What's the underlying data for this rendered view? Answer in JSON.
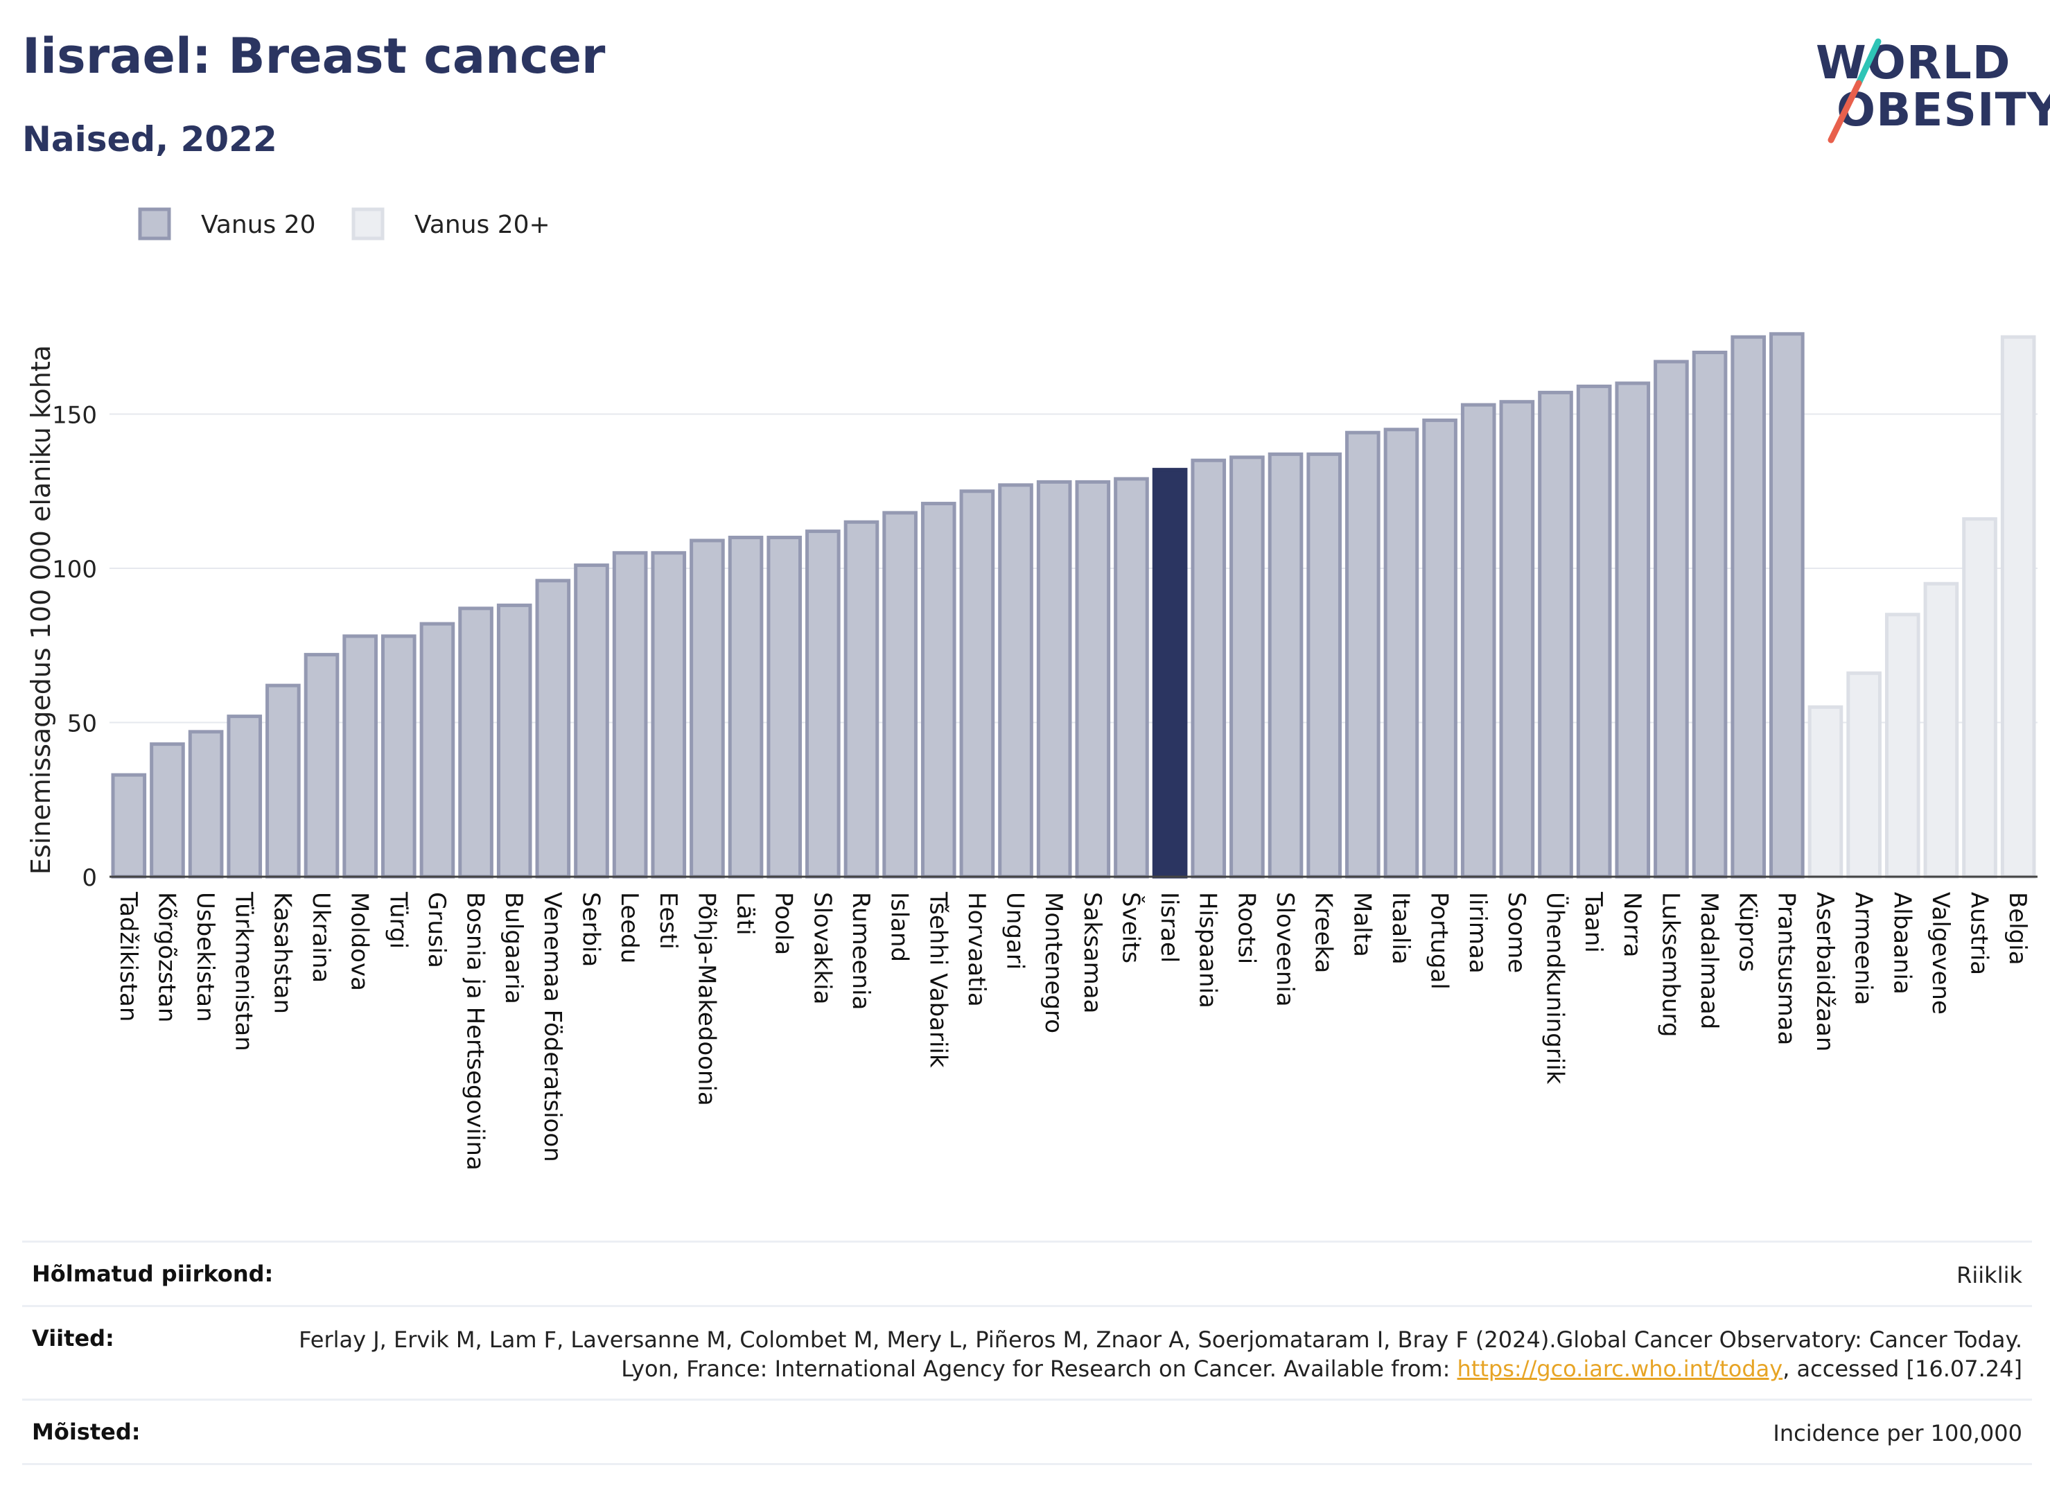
{
  "header": {
    "title": "Iisrael: Breast cancer",
    "subtitle": "Naised, 2022",
    "logo_line1": "WORLD",
    "logo_line2": "OBESITY"
  },
  "colors": {
    "primary": "#2b3561",
    "bar_age20": "#bfc3d1",
    "bar_age20_border": "#9499b2",
    "bar_age20plus": "#eceef2",
    "bar_age20plus_border": "#dcdfe6",
    "highlight": "#2b3561",
    "logo_accent_teal": "#2ec4b6",
    "logo_accent_red": "#e8604c",
    "link": "#e7a425"
  },
  "chart_data": {
    "type": "bar",
    "title": "Iisrael: Breast cancer",
    "subtitle": "Naised, 2022",
    "ylabel": "Esinemissagedus 100 000 elaniku kohta",
    "xlabel": "",
    "ylim": [
      0,
      180
    ],
    "yticks": [
      0,
      50,
      100,
      150
    ],
    "grid": true,
    "legend_position": "top-left",
    "highlight": "Iisrael",
    "legend": [
      {
        "name": "Vanus 20",
        "series": "age20"
      },
      {
        "name": "Vanus 20+",
        "series": "age20plus"
      }
    ],
    "categories": [
      "Tadžikistan",
      "Kõrgõzstan",
      "Usbekistan",
      "Türkmenistan",
      "Kasahstan",
      "Ukraina",
      "Moldova",
      "Türgi",
      "Grusia",
      "Bosnia ja Hertsegoviina",
      "Bulgaaria",
      "Venemaa Föderatsioon",
      "Serbia",
      "Leedu",
      "Eesti",
      "Põhja-Makedoonia",
      "Läti",
      "Poola",
      "Slovakkia",
      "Rumeenia",
      "Island",
      "Tšehhi Vabariik",
      "Horvaatia",
      "Ungari",
      "Montenegro",
      "Saksamaa",
      "Šveits",
      "Iisrael",
      "Hispaania",
      "Rootsi",
      "Sloveenia",
      "Kreeka",
      "Malta",
      "Itaalia",
      "Portugal",
      "Iirimaa",
      "Soome",
      "Ühendkuningriik",
      "Taani",
      "Norra",
      "Luksemburg",
      "Madalmaad",
      "Küpros",
      "Prantsusmaa",
      "Aserbaidžaan",
      "Armeenia",
      "Albaania",
      "Valgevene",
      "Austria",
      "Belgia"
    ],
    "values": [
      33,
      43,
      47,
      52,
      62,
      72,
      78,
      78,
      82,
      87,
      88,
      96,
      101,
      105,
      105,
      109,
      110,
      110,
      112,
      115,
      118,
      121,
      125,
      127,
      128,
      128,
      129,
      132,
      135,
      136,
      137,
      137,
      144,
      145,
      148,
      153,
      154,
      157,
      159,
      160,
      167,
      170,
      175,
      176,
      55,
      66,
      85,
      95,
      116,
      175
    ],
    "series_group": [
      "age20",
      "age20",
      "age20",
      "age20",
      "age20",
      "age20",
      "age20",
      "age20",
      "age20",
      "age20",
      "age20",
      "age20",
      "age20",
      "age20",
      "age20",
      "age20",
      "age20",
      "age20",
      "age20",
      "age20",
      "age20",
      "age20",
      "age20",
      "age20",
      "age20",
      "age20",
      "age20",
      "age20",
      "age20",
      "age20",
      "age20",
      "age20",
      "age20",
      "age20",
      "age20",
      "age20",
      "age20",
      "age20",
      "age20",
      "age20",
      "age20",
      "age20",
      "age20",
      "age20",
      "age20plus",
      "age20plus",
      "age20plus",
      "age20plus",
      "age20plus",
      "age20plus"
    ]
  },
  "info": {
    "rows": [
      {
        "label": "Hõlmatud piirkond:",
        "value": "Riiklik"
      },
      {
        "label": "Viited:",
        "value_before_link": "Ferlay J, Ervik M, Lam F, Laversanne M, Colombet M, Mery L, Piñeros M, Znaor A, Soerjomataram I, Bray F (2024).Global Cancer Observatory: Cancer Today. Lyon, France: International Agency for Research on Cancer. Available from: ",
        "link": "https://gco.iarc.who.int/today",
        "value_after_link": ", accessed [16.07.24]"
      },
      {
        "label": "Mõisted:",
        "value": "Incidence per 100,000"
      }
    ]
  }
}
